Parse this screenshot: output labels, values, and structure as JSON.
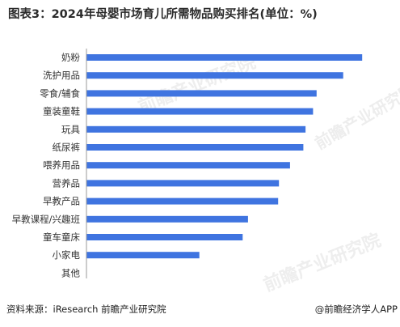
{
  "title": "图表3：2024年母婴市场育儿所需物品购买排名(单位：%)",
  "source": "资料来源：iResearch 前瞻产业研究院",
  "brand": "@前瞻经济学人APP",
  "watermark": {
    "text": "前瞻产业研究院"
  },
  "chart_data": {
    "type": "bar",
    "orientation": "horizontal",
    "title": "图表3：2024年母婴市场育儿所需物品购买排名(单位：%)",
    "categories": [
      "奶粉",
      "洗护用品",
      "零食/辅食",
      "童装童鞋",
      "玩具",
      "纸尿裤",
      "喂养用品",
      "营养品",
      "早教产品",
      "早教课程/兴趣班",
      "童车童床",
      "小家电",
      "其他"
    ],
    "values": [
      62.3,
      58.0,
      52.0,
      51.2,
      49.5,
      49.0,
      46.0,
      43.5,
      43.3,
      36.5,
      35.3,
      25.5,
      0
    ],
    "xlim": [
      0,
      65
    ],
    "grid": false,
    "legend": "none",
    "colors": {
      "bar": "#3f74e0",
      "axis": "#9a9a9a"
    }
  }
}
